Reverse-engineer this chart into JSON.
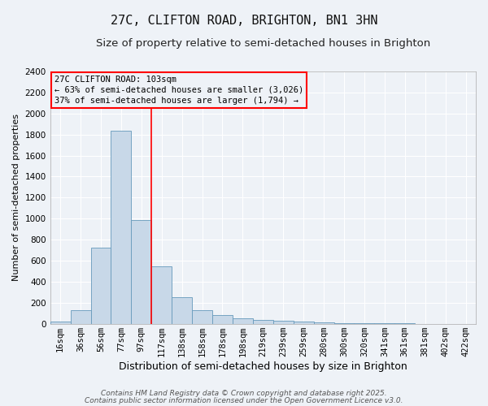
{
  "title": "27C, CLIFTON ROAD, BRIGHTON, BN1 3HN",
  "subtitle": "Size of property relative to semi-detached houses in Brighton",
  "xlabel": "Distribution of semi-detached houses by size in Brighton",
  "ylabel": "Number of semi-detached properties",
  "categories": [
    "16sqm",
    "36sqm",
    "56sqm",
    "77sqm",
    "97sqm",
    "117sqm",
    "138sqm",
    "158sqm",
    "178sqm",
    "198sqm",
    "219sqm",
    "239sqm",
    "259sqm",
    "280sqm",
    "300sqm",
    "320sqm",
    "341sqm",
    "361sqm",
    "381sqm",
    "402sqm",
    "422sqm"
  ],
  "values": [
    20,
    130,
    720,
    1840,
    990,
    545,
    250,
    130,
    80,
    55,
    35,
    25,
    22,
    14,
    8,
    5,
    3,
    2,
    1,
    1,
    0
  ],
  "bar_color": "#c8d8e8",
  "bar_edge_color": "#6699bb",
  "red_line_index": 4,
  "annotation_title": "27C CLIFTON ROAD: 103sqm",
  "annotation_line1": "← 63% of semi-detached houses are smaller (3,026)",
  "annotation_line2": "37% of semi-detached houses are larger (1,794) →",
  "footer1": "Contains HM Land Registry data © Crown copyright and database right 2025.",
  "footer2": "Contains public sector information licensed under the Open Government Licence v3.0.",
  "ylim": [
    0,
    2400
  ],
  "yticks": [
    0,
    200,
    400,
    600,
    800,
    1000,
    1200,
    1400,
    1600,
    1800,
    2000,
    2200,
    2400
  ],
  "bg_color": "#eef2f7",
  "grid_color": "#ffffff",
  "title_fontsize": 11,
  "subtitle_fontsize": 9.5,
  "xlabel_fontsize": 9,
  "ylabel_fontsize": 8,
  "tick_fontsize": 7.5,
  "annotation_fontsize": 7.5,
  "footer_fontsize": 6.5
}
